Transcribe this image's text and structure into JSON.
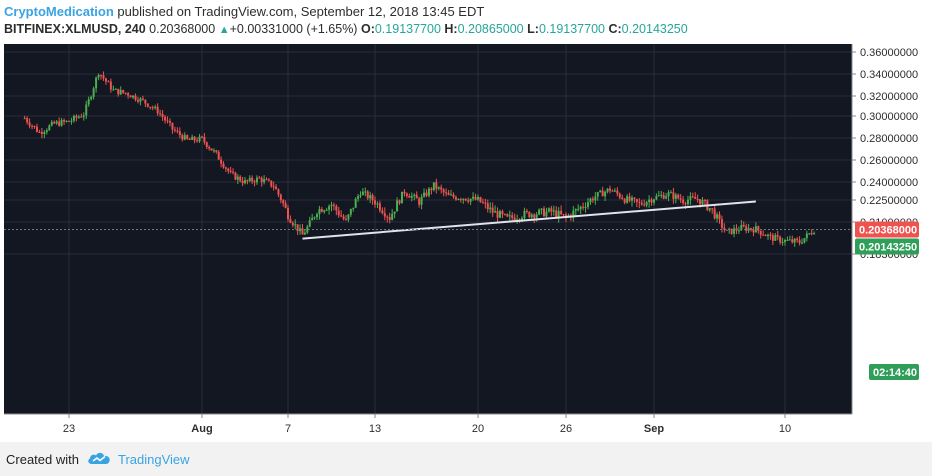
{
  "header": {
    "author": "CryptoMedication",
    "published_text": " published on TradingView.com, September 12, 2018 13:45 EDT",
    "symbol": "BITFINEX:XLMUSD, 240",
    "last": "0.20368000",
    "change_arrow": "▲",
    "change": "+0.00331000 (+1.65%)",
    "o_label": "O:",
    "o_value": "0.19137700",
    "h_label": "H:",
    "h_value": "0.20865000",
    "l_label": "L:",
    "l_value": "0.19137700",
    "c_label": "C:",
    "c_value": "0.20143250"
  },
  "footer": {
    "created_with": "Created with",
    "brand": "TradingView",
    "cloud_icon": "tradingview-cloud-icon"
  },
  "colors": {
    "up": "#26a69a",
    "up_candle": "#4caf50",
    "down": "#ef5350",
    "background": "#131722",
    "grid": "#2a2e39",
    "trendline": "#e0e3eb",
    "last_price_tag": "#ef5350",
    "close_tag": "#2e9e59"
  },
  "chart_data": {
    "type": "candlestick",
    "y_axis_ticks": [
      "0.36000000",
      "0.34000000",
      "0.32000000",
      "0.30000000",
      "0.28000000",
      "0.26000000",
      "0.24000000",
      "0.22500000",
      "0.21000000",
      "0.18300000"
    ],
    "x_axis_ticks": [
      {
        "label": "23",
        "bold": false
      },
      {
        "label": "Aug",
        "bold": true
      },
      {
        "label": "7",
        "bold": false
      },
      {
        "label": "13",
        "bold": false
      },
      {
        "label": "20",
        "bold": false
      },
      {
        "label": "26",
        "bold": false
      },
      {
        "label": "Sep",
        "bold": true
      },
      {
        "label": "10",
        "bold": false
      }
    ],
    "price_tags": {
      "last_price": "0.20368000",
      "close": "0.20143250",
      "countdown": "02:14:40"
    },
    "grid": true,
    "trendline": {
      "from": [
        "Aug 8",
        0.196
      ],
      "to": [
        "Sep 8",
        0.224
      ]
    },
    "key_points": [
      {
        "x": "Jul 20",
        "y": 0.298
      },
      {
        "x": "Jul 21",
        "y": 0.285
      },
      {
        "x": "Jul 22",
        "y": 0.293
      },
      {
        "x": "Jul 23",
        "y": 0.295
      },
      {
        "x": "Jul 24",
        "y": 0.302
      },
      {
        "x": "Jul 25",
        "y": 0.342
      },
      {
        "x": "Jul 26",
        "y": 0.325
      },
      {
        "x": "Jul 27",
        "y": 0.322
      },
      {
        "x": "Jul 28",
        "y": 0.315
      },
      {
        "x": "Jul 29",
        "y": 0.305
      },
      {
        "x": "Jul 30",
        "y": 0.288
      },
      {
        "x": "Jul 31",
        "y": 0.278
      },
      {
        "x": "Aug 1",
        "y": 0.279
      },
      {
        "x": "Aug 2",
        "y": 0.265
      },
      {
        "x": "Aug 3",
        "y": 0.247
      },
      {
        "x": "Aug 4",
        "y": 0.24
      },
      {
        "x": "Aug 5",
        "y": 0.243
      },
      {
        "x": "Aug 6",
        "y": 0.237
      },
      {
        "x": "Aug 7",
        "y": 0.215
      },
      {
        "x": "Aug 8",
        "y": 0.199
      },
      {
        "x": "Aug 9",
        "y": 0.218
      },
      {
        "x": "Aug 10",
        "y": 0.222
      },
      {
        "x": "Aug 11",
        "y": 0.21
      },
      {
        "x": "Aug 12",
        "y": 0.232
      },
      {
        "x": "Aug 13",
        "y": 0.224
      },
      {
        "x": "Aug 14",
        "y": 0.213
      },
      {
        "x": "Aug 15",
        "y": 0.232
      },
      {
        "x": "Aug 16",
        "y": 0.224
      },
      {
        "x": "Aug 17",
        "y": 0.237
      },
      {
        "x": "Aug 18",
        "y": 0.228
      },
      {
        "x": "Aug 19",
        "y": 0.227
      },
      {
        "x": "Aug 20",
        "y": 0.225
      },
      {
        "x": "Aug 21",
        "y": 0.217
      },
      {
        "x": "Aug 22",
        "y": 0.212
      },
      {
        "x": "Aug 23",
        "y": 0.215
      },
      {
        "x": "Aug 24",
        "y": 0.216
      },
      {
        "x": "Aug 25",
        "y": 0.217
      },
      {
        "x": "Aug 26",
        "y": 0.213
      },
      {
        "x": "Aug 27",
        "y": 0.22
      },
      {
        "x": "Aug 28",
        "y": 0.228
      },
      {
        "x": "Aug 29",
        "y": 0.234
      },
      {
        "x": "Aug 30",
        "y": 0.226
      },
      {
        "x": "Aug 31",
        "y": 0.222
      },
      {
        "x": "Sep 1",
        "y": 0.227
      },
      {
        "x": "Sep 2",
        "y": 0.23
      },
      {
        "x": "Sep 3",
        "y": 0.225
      },
      {
        "x": "Sep 4",
        "y": 0.226
      },
      {
        "x": "Sep 5",
        "y": 0.218
      },
      {
        "x": "Sep 6",
        "y": 0.201
      },
      {
        "x": "Sep 7",
        "y": 0.205
      },
      {
        "x": "Sep 8",
        "y": 0.204
      },
      {
        "x": "Sep 9",
        "y": 0.197
      },
      {
        "x": "Sep 10",
        "y": 0.194
      },
      {
        "x": "Sep 11",
        "y": 0.193
      },
      {
        "x": "Sep 12",
        "y": 0.2035
      }
    ]
  }
}
